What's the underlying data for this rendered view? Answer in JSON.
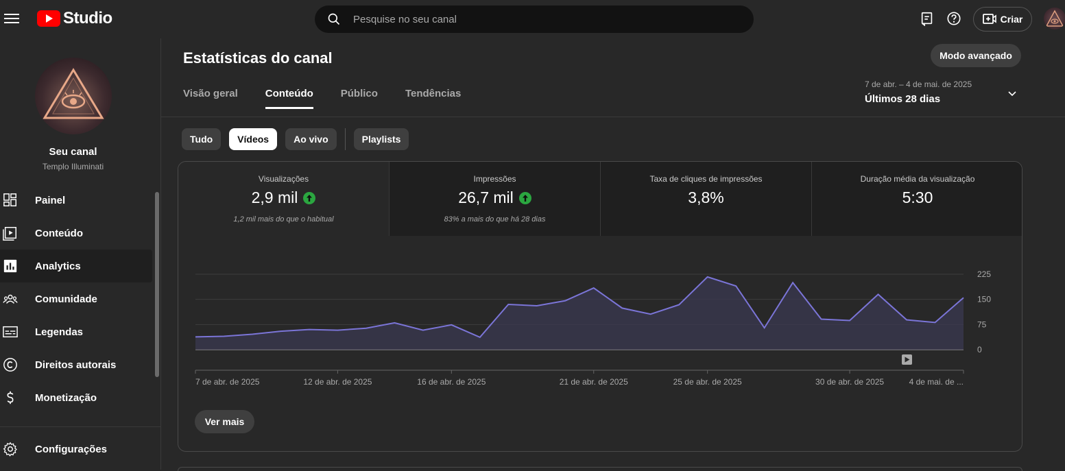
{
  "topbar": {
    "logo_text": "Studio",
    "search_placeholder": "Pesquise no seu canal",
    "create_label": "Criar"
  },
  "sidebar": {
    "channel_name": "Seu canal",
    "channel_handle": "Templo Illuminati",
    "items": [
      {
        "label": "Painel",
        "icon": "dashboard-icon"
      },
      {
        "label": "Conteúdo",
        "icon": "content-icon"
      },
      {
        "label": "Analytics",
        "icon": "analytics-icon",
        "active": true
      },
      {
        "label": "Comunidade",
        "icon": "community-icon"
      },
      {
        "label": "Legendas",
        "icon": "subtitles-icon"
      },
      {
        "label": "Direitos autorais",
        "icon": "copyright-icon"
      },
      {
        "label": "Monetização",
        "icon": "monetization-icon"
      }
    ],
    "settings_label": "Configurações"
  },
  "main": {
    "title": "Estatísticas do canal",
    "advanced_mode_label": "Modo avançado",
    "tabs": [
      {
        "label": "Visão geral"
      },
      {
        "label": "Conteúdo",
        "active": true
      },
      {
        "label": "Público"
      },
      {
        "label": "Tendências"
      }
    ],
    "date_range": {
      "dates": "7 de abr. – 4 de mai. de 2025",
      "label": "Últimos 28 dias"
    },
    "chips": [
      {
        "label": "Tudo"
      },
      {
        "label": "Vídeos",
        "selected": true
      },
      {
        "label": "Ao vivo"
      },
      {
        "label": "Playlists"
      }
    ],
    "metrics": [
      {
        "label": "Visualizações",
        "value": "2,9 mil",
        "trend": "up",
        "sub": "1,2 mil mais do que o habitual"
      },
      {
        "label": "Impressões",
        "value": "26,7 mil",
        "trend": "up",
        "sub": "83% a mais do que há 28 dias"
      },
      {
        "label": "Taxa de cliques de impressões",
        "value": "3,8%",
        "trend": "",
        "sub": ""
      },
      {
        "label": "Duração média da visualização",
        "value": "5:30",
        "trend": "",
        "sub": ""
      }
    ],
    "see_more_label": "Ver mais"
  },
  "chart_data": {
    "type": "area",
    "series": [
      {
        "values": [
          38,
          40,
          46,
          55,
          60,
          58,
          64,
          80,
          58,
          74,
          37,
          135,
          131,
          146,
          184,
          124,
          106,
          134,
          217,
          190,
          65,
          200,
          91,
          87,
          165,
          89,
          81,
          155
        ]
      }
    ],
    "x_tick_labels": [
      "7 de abr. de 2025",
      "12 de abr. de 2025",
      "16 de abr. de 2025",
      "21 de abr. de 2025",
      "25 de abr. de 2025",
      "30 de abr. de 2025",
      "4 de mai. de ..."
    ],
    "y_ticks": [
      "225",
      "150",
      "75",
      "0"
    ],
    "ylim": [
      0,
      225
    ],
    "grid": true,
    "colors": {
      "line": "#7b75d8",
      "fill": "#3a3850"
    }
  }
}
